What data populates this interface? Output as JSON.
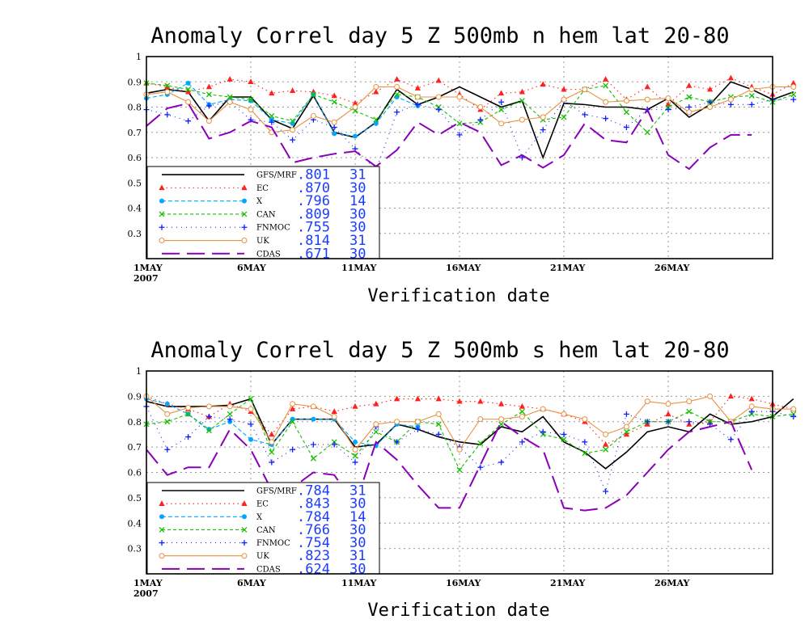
{
  "chart_data": [
    {
      "type": "line",
      "title": "Anomaly Correl  day 5  Z 500mb  n hem  lat 20-80",
      "xlabel": "Verification date",
      "ylabel": "",
      "ylim": [
        0.2,
        1.0
      ],
      "xlim": [
        1,
        31
      ],
      "yticks": [
        "1",
        "0.9",
        "0.8",
        "0.7",
        "0.6",
        "0.5",
        "0.4",
        "0.3"
      ],
      "xticks": [
        {
          "x": 1,
          "label": "1MAY",
          "sub": "2007"
        },
        {
          "x": 6,
          "label": "6MAY"
        },
        {
          "x": 11,
          "label": "11MAY"
        },
        {
          "x": 16,
          "label": "16MAY"
        },
        {
          "x": 21,
          "label": "21MAY"
        },
        {
          "x": 26,
          "label": "26MAY"
        }
      ],
      "grid": true,
      "legend_position": "lower-left",
      "series": [
        {
          "name": "GFS/MRF",
          "score": ".801",
          "count": "31",
          "color": "#000000",
          "dash": "",
          "marker": "none",
          "values": [
            0.855,
            0.87,
            0.86,
            0.745,
            0.84,
            0.84,
            0.75,
            0.715,
            0.845,
            0.7,
            0.68,
            0.74,
            0.87,
            0.81,
            0.84,
            0.88,
            0.84,
            0.8,
            0.825,
            0.6,
            0.815,
            0.81,
            0.8,
            0.8,
            0.79,
            0.835,
            0.76,
            0.81,
            0.9,
            0.87,
            0.83,
            0.86
          ]
        },
        {
          "name": "EC",
          "score": ".870",
          "count": "30",
          "color": "#ff2020",
          "dash": "1.5 4",
          "marker": "tri",
          "values": [
            0.895,
            0.88,
            0.86,
            0.88,
            0.91,
            0.9,
            0.855,
            0.865,
            0.86,
            0.845,
            0.815,
            0.86,
            0.91,
            0.875,
            0.905,
            0.85,
            0.79,
            0.855,
            0.86,
            0.89,
            0.87,
            0.87,
            0.91,
            0.83,
            0.88,
            0.81,
            0.885,
            0.87,
            0.915,
            0.88,
            0.85,
            0.895
          ]
        },
        {
          "name": "X",
          "score": ".796",
          "count": "14",
          "color": "#00a6ff",
          "dash": "5 3",
          "marker": "dot",
          "values": [
            0.835,
            0.85,
            0.895,
            0.81,
            0.83,
            0.825,
            0.75,
            0.735,
            0.85,
            0.695,
            0.685,
            0.735,
            0.84,
            0.805,
            null,
            null,
            null,
            null,
            null,
            null,
            null,
            null,
            null,
            null,
            null,
            null,
            null,
            null,
            null,
            null,
            null,
            null
          ]
        },
        {
          "name": "CAN",
          "score": ".809",
          "count": "30",
          "color": "#16c000",
          "dash": "4 3",
          "marker": "x",
          "values": [
            0.895,
            0.885,
            0.87,
            0.85,
            0.84,
            0.83,
            0.765,
            0.745,
            0.85,
            0.82,
            0.785,
            0.75,
            0.85,
            0.84,
            0.8,
            0.735,
            0.74,
            0.79,
            0.825,
            0.75,
            0.76,
            0.87,
            0.885,
            0.78,
            0.7,
            0.8,
            0.84,
            0.82,
            0.84,
            0.845,
            0.82,
            0.85
          ]
        },
        {
          "name": "FNMOC",
          "score": ".755",
          "count": "30",
          "color": "#1020ff",
          "dash": "1 5",
          "marker": "plus",
          "values": [
            0.79,
            0.77,
            0.745,
            0.805,
            0.82,
            0.75,
            0.74,
            0.67,
            0.75,
            0.72,
            0.635,
            0.55,
            0.78,
            0.81,
            0.79,
            0.69,
            0.75,
            0.82,
            0.6,
            0.71,
            0.825,
            0.77,
            0.755,
            0.72,
            0.79,
            0.79,
            0.8,
            0.82,
            0.81,
            0.81,
            0.83,
            0.83
          ]
        },
        {
          "name": "UK",
          "score": ".814",
          "count": "31",
          "color": "#e89040",
          "dash": "",
          "marker": "circle",
          "values": [
            0.85,
            0.86,
            0.82,
            0.745,
            0.82,
            0.79,
            0.7,
            0.71,
            0.765,
            0.74,
            0.8,
            0.88,
            0.88,
            0.84,
            0.84,
            0.84,
            0.8,
            0.735,
            0.75,
            0.76,
            0.83,
            0.87,
            0.82,
            0.825,
            0.83,
            0.835,
            0.78,
            0.8,
            0.83,
            0.87,
            0.88,
            0.88
          ]
        },
        {
          "name": "CDAS",
          "score": ".671",
          "count": "30",
          "color": "#8a00b8",
          "dash": "22 9",
          "marker": "none",
          "values": [
            0.725,
            0.795,
            0.815,
            0.675,
            0.7,
            0.745,
            0.72,
            0.58,
            0.6,
            0.615,
            0.625,
            0.565,
            0.63,
            0.74,
            0.69,
            0.74,
            0.7,
            0.57,
            0.61,
            0.56,
            0.61,
            0.735,
            0.67,
            0.66,
            0.79,
            0.61,
            0.555,
            0.64,
            0.69,
            0.69,
            null,
            null
          ]
        }
      ]
    },
    {
      "type": "line",
      "title": "Anomaly Correl  day 5  Z 500mb  s hem  lat 20-80",
      "xlabel": "Verification date",
      "ylabel": "",
      "ylim": [
        0.2,
        1.0
      ],
      "xlim": [
        1,
        31
      ],
      "yticks": [
        "1",
        "0.9",
        "0.8",
        "0.7",
        "0.6",
        "0.5",
        "0.4",
        "0.3"
      ],
      "xticks": [
        {
          "x": 1,
          "label": "1MAY",
          "sub": "2007"
        },
        {
          "x": 6,
          "label": "6MAY"
        },
        {
          "x": 11,
          "label": "11MAY"
        },
        {
          "x": 16,
          "label": "16MAY"
        },
        {
          "x": 21,
          "label": "21MAY"
        },
        {
          "x": 26,
          "label": "26MAY"
        }
      ],
      "grid": true,
      "legend_position": "lower-left",
      "series": [
        {
          "name": "GFS/MRF",
          "score": ".784",
          "count": "31",
          "color": "#000000",
          "dash": "",
          "marker": "none",
          "values": [
            0.88,
            0.86,
            0.86,
            0.86,
            0.865,
            0.89,
            0.71,
            0.81,
            0.81,
            0.81,
            0.7,
            0.71,
            0.79,
            0.77,
            0.74,
            0.72,
            0.71,
            0.78,
            0.76,
            0.82,
            0.72,
            0.68,
            0.615,
            0.68,
            0.76,
            0.78,
            0.76,
            0.83,
            0.79,
            0.8,
            0.82,
            0.89
          ]
        },
        {
          "name": "EC",
          "score": ".843",
          "count": "30",
          "color": "#ff2020",
          "dash": "1.5 4",
          "marker": "tri",
          "values": [
            0.9,
            0.87,
            0.85,
            0.82,
            0.87,
            0.84,
            0.75,
            0.85,
            0.86,
            0.84,
            0.86,
            0.87,
            0.89,
            0.89,
            0.89,
            0.88,
            0.88,
            0.87,
            0.86,
            0.85,
            0.83,
            0.8,
            0.71,
            0.75,
            0.79,
            0.83,
            0.79,
            0.8,
            0.9,
            0.89,
            0.87,
            0.85
          ]
        },
        {
          "name": "X",
          "score": ".784",
          "count": "14",
          "color": "#00a6ff",
          "dash": "5 3",
          "marker": "dot",
          "values": [
            0.89,
            0.87,
            0.83,
            0.77,
            0.8,
            0.73,
            0.71,
            0.81,
            0.81,
            0.81,
            0.72,
            0.705,
            0.79,
            0.78,
            null,
            null,
            null,
            null,
            null,
            null,
            null,
            null,
            null,
            null,
            null,
            null,
            null,
            null,
            null,
            null,
            null,
            null
          ]
        },
        {
          "name": "CAN",
          "score": ".766",
          "count": "30",
          "color": "#16c000",
          "dash": "4 3",
          "marker": "x",
          "values": [
            0.79,
            0.8,
            0.83,
            0.765,
            0.83,
            0.89,
            0.68,
            0.8,
            0.655,
            0.72,
            0.665,
            0.76,
            0.72,
            0.8,
            0.79,
            0.61,
            0.715,
            0.79,
            0.84,
            0.75,
            0.73,
            0.675,
            0.69,
            0.76,
            0.8,
            0.8,
            0.84,
            0.8,
            0.8,
            0.83,
            0.82,
            0.83
          ]
        },
        {
          "name": "FNMOC",
          "score": ".754",
          "count": "30",
          "color": "#1020ff",
          "dash": "1 5",
          "marker": "plus",
          "values": [
            0.86,
            0.69,
            0.74,
            0.82,
            0.81,
            0.79,
            0.64,
            0.69,
            0.71,
            0.71,
            0.64,
            0.78,
            0.72,
            0.77,
            0.75,
            0.7,
            0.62,
            0.64,
            0.72,
            0.76,
            0.75,
            0.72,
            0.525,
            0.83,
            0.8,
            0.8,
            0.8,
            0.79,
            0.73,
            0.84,
            0.84,
            0.82
          ]
        },
        {
          "name": "UK",
          "score": ".823",
          "count": "31",
          "color": "#e89040",
          "dash": "",
          "marker": "circle",
          "values": [
            0.9,
            0.83,
            0.855,
            0.86,
            0.86,
            0.85,
            0.72,
            0.87,
            0.86,
            0.82,
            0.69,
            0.79,
            0.8,
            0.8,
            0.83,
            0.69,
            0.81,
            0.81,
            0.82,
            0.85,
            0.83,
            0.81,
            0.75,
            0.78,
            0.88,
            0.87,
            0.88,
            0.9,
            0.8,
            0.86,
            0.85,
            0.85
          ]
        },
        {
          "name": "CDAS",
          "score": ".624",
          "count": "30",
          "color": "#8a00b8",
          "dash": "22 9",
          "marker": "none",
          "values": [
            0.69,
            0.59,
            0.62,
            0.62,
            0.77,
            0.69,
            0.53,
            0.54,
            0.6,
            0.59,
            0.47,
            0.72,
            0.65,
            0.55,
            0.46,
            0.46,
            0.63,
            0.8,
            0.74,
            0.69,
            0.46,
            0.45,
            0.46,
            0.51,
            0.6,
            0.69,
            0.76,
            0.78,
            0.8,
            0.61,
            null,
            null
          ]
        }
      ]
    }
  ]
}
